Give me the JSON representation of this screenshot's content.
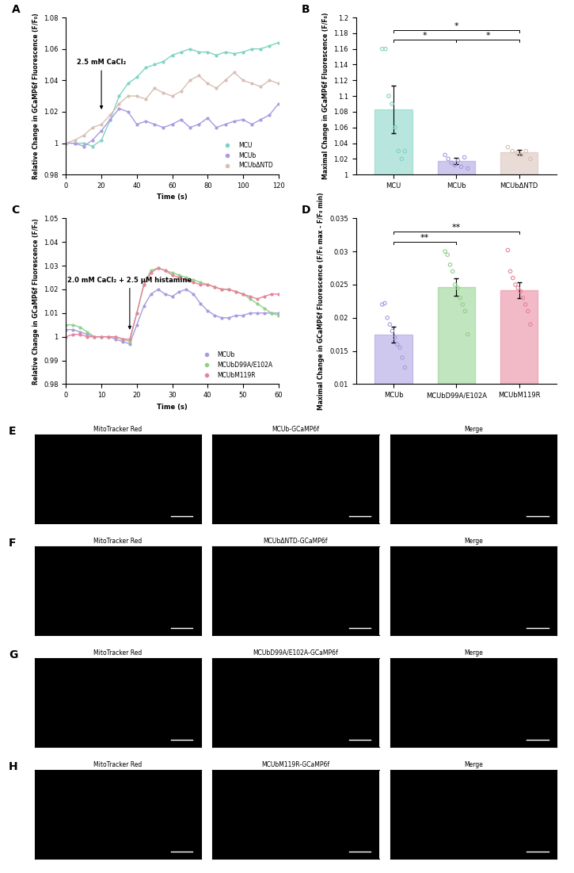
{
  "chart_data": [
    {
      "panel": "A",
      "type": "line",
      "x_label": "Time (s)",
      "y_label": "Relative Change in GCaMP6f Fluorescence (F/F₀)",
      "x": [
        0,
        5,
        10,
        15,
        20,
        25,
        30,
        35,
        40,
        45,
        50,
        55,
        60,
        65,
        70,
        75,
        80,
        85,
        90,
        95,
        100,
        105,
        110,
        115,
        120
      ],
      "series": [
        {
          "name": "MCU",
          "color": "#7fd3c4",
          "values": [
            1.0,
            1.0,
            1.0,
            0.998,
            1.002,
            1.015,
            1.03,
            1.038,
            1.042,
            1.048,
            1.05,
            1.052,
            1.056,
            1.058,
            1.06,
            1.058,
            1.058,
            1.056,
            1.058,
            1.057,
            1.058,
            1.06,
            1.06,
            1.062,
            1.064
          ]
        },
        {
          "name": "MCUb",
          "color": "#a99be0",
          "values": [
            1.0,
            1.0,
            0.998,
            1.002,
            1.008,
            1.015,
            1.022,
            1.02,
            1.012,
            1.014,
            1.012,
            1.01,
            1.012,
            1.015,
            1.01,
            1.012,
            1.016,
            1.01,
            1.012,
            1.014,
            1.015,
            1.012,
            1.015,
            1.018,
            1.025
          ]
        },
        {
          "name": "MCUbΔNTD",
          "color": "#d8bfb5",
          "values": [
            1.0,
            1.002,
            1.005,
            1.01,
            1.012,
            1.018,
            1.025,
            1.03,
            1.03,
            1.028,
            1.035,
            1.032,
            1.03,
            1.033,
            1.04,
            1.043,
            1.038,
            1.035,
            1.04,
            1.045,
            1.04,
            1.038,
            1.036,
            1.04,
            1.038
          ]
        }
      ],
      "annotation": {
        "text": "2.5 mM CaCl₂",
        "x": 20,
        "y": 1.02
      },
      "xlim": [
        0,
        120
      ],
      "xticks": [
        0,
        20,
        40,
        60,
        80,
        100,
        120
      ],
      "ylim": [
        0.98,
        1.08
      ],
      "yticks": [
        0.98,
        1,
        1.02,
        1.04,
        1.06,
        1.08
      ],
      "legend": "lower right",
      "marker": "o"
    },
    {
      "panel": "B",
      "type": "bar",
      "y_label": "Maximal Change in GCaMP6f Fluorescence (F/F₀)",
      "categories": [
        "MCU",
        "MCUb",
        "MCUbΔNTD"
      ],
      "values": [
        1.083,
        1.017,
        1.028
      ],
      "errors": [
        0.03,
        0.004,
        0.003
      ],
      "points": [
        [
          1.16,
          1.16,
          1.1,
          1.09,
          1.06,
          1.03,
          1.02,
          1.03
        ],
        [
          1.025,
          1.02,
          1.015,
          1.012,
          1.018,
          1.01,
          1.022,
          1.008
        ],
        [
          1.035,
          1.03,
          1.028,
          1.025,
          1.03,
          1.02
        ]
      ],
      "colors": [
        "#7fd3c4",
        "#a99be0",
        "#d8bfb5"
      ],
      "significance": [
        {
          "pair": [
            0,
            1
          ],
          "label": "*"
        },
        {
          "pair": [
            0,
            2
          ],
          "label": "*"
        },
        {
          "pair": [
            1,
            2
          ],
          "label": "*"
        }
      ],
      "ylim": [
        1,
        1.2
      ],
      "yticks": [
        1,
        1.02,
        1.04,
        1.06,
        1.08,
        1.1,
        1.12,
        1.14,
        1.16,
        1.18,
        1.2
      ]
    },
    {
      "panel": "C",
      "type": "line",
      "x_label": "Time (s)",
      "y_label": "Relative Change in GCaMP6f Fluorescence (F/F₀)",
      "x": [
        0,
        2,
        4,
        6,
        8,
        10,
        12,
        14,
        16,
        18,
        20,
        22,
        24,
        26,
        28,
        30,
        32,
        34,
        36,
        38,
        40,
        42,
        44,
        46,
        48,
        50,
        52,
        54,
        56,
        58,
        60
      ],
      "series": [
        {
          "name": "MCUb",
          "color": "#a99be0",
          "values": [
            1.003,
            1.003,
            1.002,
            1.001,
            1.0,
            1.0,
            1.0,
            0.999,
            0.998,
            0.997,
            1.005,
            1.013,
            1.018,
            1.02,
            1.018,
            1.017,
            1.019,
            1.02,
            1.018,
            1.014,
            1.011,
            1.009,
            1.008,
            1.008,
            1.009,
            1.009,
            1.01,
            1.01,
            1.01,
            1.01,
            1.01
          ]
        },
        {
          "name": "MCUbD99A/E102A",
          "color": "#8fd18a",
          "values": [
            1.005,
            1.005,
            1.004,
            1.002,
            1.0,
            1.0,
            1.0,
            1.0,
            0.999,
            0.998,
            1.01,
            1.022,
            1.028,
            1.029,
            1.028,
            1.027,
            1.026,
            1.025,
            1.024,
            1.023,
            1.022,
            1.021,
            1.02,
            1.02,
            1.019,
            1.018,
            1.016,
            1.014,
            1.012,
            1.01,
            1.009
          ]
        },
        {
          "name": "MCUbM119R",
          "color": "#e8829a",
          "values": [
            1.0,
            1.001,
            1.001,
            1.0,
            1.0,
            1.0,
            1.0,
            1.0,
            0.999,
            0.999,
            1.01,
            1.022,
            1.027,
            1.029,
            1.028,
            1.026,
            1.025,
            1.024,
            1.023,
            1.022,
            1.022,
            1.021,
            1.02,
            1.02,
            1.019,
            1.018,
            1.017,
            1.016,
            1.017,
            1.018,
            1.018
          ]
        }
      ],
      "annotation": {
        "text": "2.0 mM CaCl₂ + 2.5 μM histamine",
        "x": 18,
        "y": 1.002
      },
      "xlim": [
        0,
        60
      ],
      "xticks": [
        0,
        10,
        20,
        30,
        40,
        50,
        60
      ],
      "ylim": [
        0.98,
        1.05
      ],
      "yticks": [
        0.98,
        0.99,
        1,
        1.01,
        1.02,
        1.03,
        1.04,
        1.05
      ],
      "legend": "lower right",
      "marker": "o"
    },
    {
      "panel": "D",
      "type": "bar",
      "y_label": "Maximal Change in GCaMP6f Fluorescence (F/F₀ max - F/F₀ min)",
      "categories": [
        "MCUb",
        "MCUbD99A/E102A",
        "MCUbM119R"
      ],
      "values": [
        0.0175,
        0.0246,
        0.0242
      ],
      "errors": [
        0.0012,
        0.0013,
        0.0012
      ],
      "points": [
        [
          0.022,
          0.0222,
          0.02,
          0.019,
          0.018,
          0.017,
          0.016,
          0.0155,
          0.014,
          0.0125
        ],
        [
          0.03,
          0.0295,
          0.028,
          0.027,
          0.025,
          0.0245,
          0.023,
          0.022,
          0.021,
          0.0175
        ],
        [
          0.0302,
          0.027,
          0.026,
          0.025,
          0.0245,
          0.024,
          0.023,
          0.022,
          0.021,
          0.019
        ]
      ],
      "colors": [
        "#a99be0",
        "#8fd18a",
        "#e8829a"
      ],
      "significance": [
        {
          "pair": [
            0,
            1
          ],
          "label": "**"
        },
        {
          "pair": [
            0,
            2
          ],
          "label": "**"
        }
      ],
      "ylim": [
        0.01,
        0.035
      ],
      "yticks": [
        0.01,
        0.015,
        0.02,
        0.025,
        0.03,
        0.035
      ]
    }
  ],
  "image_panels": [
    {
      "panel": "E",
      "titles": [
        "MitoTracker Red",
        "MCUb-GCaMP6f",
        "Merge"
      ]
    },
    {
      "panel": "F",
      "titles": [
        "MitoTracker Red",
        "MCUbΔNTD-GCaMP6f",
        "Merge"
      ]
    },
    {
      "panel": "G",
      "titles": [
        "MitoTracker Red",
        "MCUbD99A/E102A-GCaMP6f",
        "Merge"
      ]
    },
    {
      "panel": "H",
      "titles": [
        "MitoTracker Red",
        "MCUbM119R-GCaMP6f",
        "Merge"
      ]
    }
  ]
}
